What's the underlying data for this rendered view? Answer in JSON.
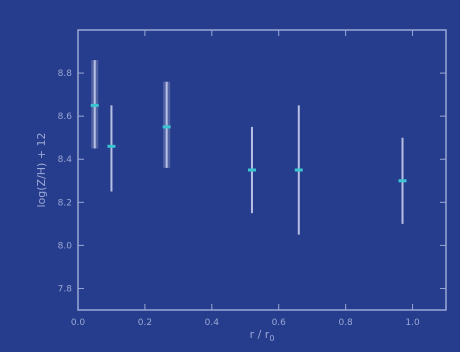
{
  "chart_data": {
    "type": "scatter",
    "title": "",
    "xlabel": "r / r",
    "xlabel_sub": "0",
    "ylabel": "log(Z/H) + 12",
    "xlim": [
      0.0,
      1.1
    ],
    "ylim": [
      7.7,
      9.0
    ],
    "xticks": [
      "0.0",
      "0.2",
      "0.4",
      "0.6",
      "0.8",
      "1.0"
    ],
    "xtick_values": [
      0.0,
      0.2,
      0.4,
      0.6,
      0.8,
      1.0
    ],
    "yticks": [
      "7.8",
      "8.0",
      "8.2",
      "8.4",
      "8.6",
      "8.8"
    ],
    "ytick_values": [
      7.8,
      8.0,
      8.2,
      8.4,
      8.6,
      8.8
    ],
    "grid": false,
    "wide_bars": [
      {
        "x": 0.05,
        "y": 8.65,
        "low": 8.45,
        "high": 8.86
      },
      {
        "x": 0.265,
        "y": 8.55,
        "low": 8.36,
        "high": 8.76
      }
    ],
    "points": [
      {
        "x": 0.05,
        "y": 8.65,
        "low": 8.45,
        "high": 8.86
      },
      {
        "x": 0.1,
        "y": 8.46,
        "low": 8.25,
        "high": 8.65
      },
      {
        "x": 0.265,
        "y": 8.55,
        "low": 8.36,
        "high": 8.76
      },
      {
        "x": 0.52,
        "y": 8.35,
        "low": 8.15,
        "high": 8.55
      },
      {
        "x": 0.66,
        "y": 8.35,
        "low": 8.05,
        "high": 8.65
      },
      {
        "x": 0.97,
        "y": 8.3,
        "low": 8.1,
        "high": 8.5
      }
    ],
    "colors": {
      "background": "#263c8c",
      "frame": "#9aa8d6",
      "errorbar": "#b7bfe3",
      "wide_bar": "#5a6aa8",
      "marker": "#39c6d0"
    }
  }
}
